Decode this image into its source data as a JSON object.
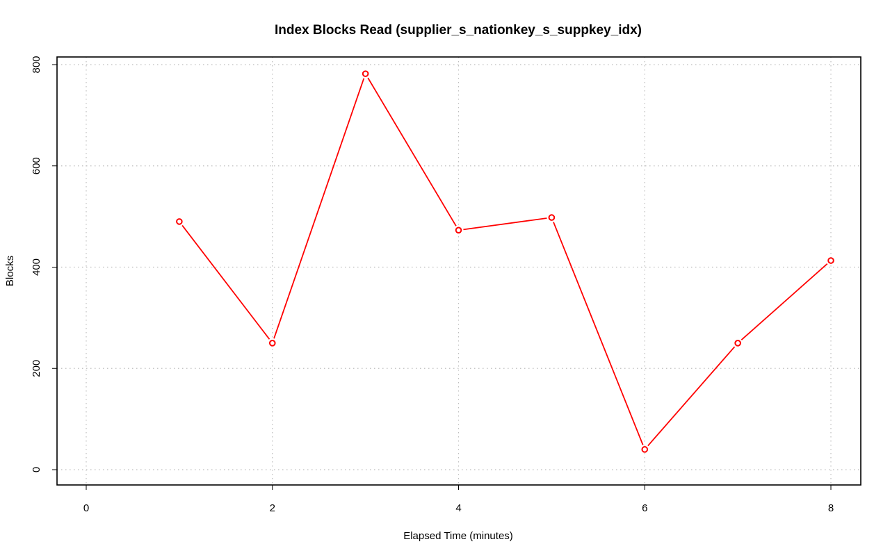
{
  "chart_data": {
    "type": "line",
    "title": "Index Blocks Read (supplier_s_nationkey_s_suppkey_idx)",
    "xlabel": "Elapsed Time (minutes)",
    "ylabel": "Blocks",
    "xlim": [
      0,
      8
    ],
    "ylim": [
      0,
      800
    ],
    "x_ticks": [
      0,
      2,
      4,
      6,
      8
    ],
    "y_ticks": [
      0,
      200,
      400,
      600,
      800
    ],
    "grid": true,
    "legend": "none",
    "series": [
      {
        "color": "#ff0000",
        "x": [
          1,
          2,
          3,
          4,
          5,
          6,
          7,
          8
        ],
        "y": [
          490,
          250,
          782,
          473,
          498,
          40,
          250,
          413
        ]
      }
    ]
  }
}
